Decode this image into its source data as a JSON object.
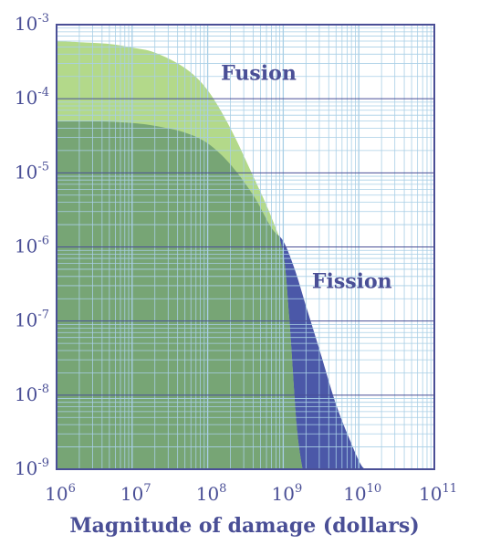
{
  "chart_data": {
    "type": "area",
    "xscale": "log",
    "yscale": "log",
    "xlim": [
      1000000,
      100000000000
    ],
    "ylim": [
      1e-09,
      0.001
    ],
    "grid": true,
    "xlabel": "Magnitude of damage (dollars)",
    "ylabel": "",
    "title": "",
    "x_ticks": [
      {
        "base": "10",
        "exp": "6"
      },
      {
        "base": "10",
        "exp": "7"
      },
      {
        "base": "10",
        "exp": "8"
      },
      {
        "base": "10",
        "exp": "9"
      },
      {
        "base": "10",
        "exp": "10"
      },
      {
        "base": "10",
        "exp": "11"
      }
    ],
    "y_ticks": [
      {
        "base": "10",
        "exp": "-3"
      },
      {
        "base": "10",
        "exp": "-4"
      },
      {
        "base": "10",
        "exp": "-5"
      },
      {
        "base": "10",
        "exp": "-6"
      },
      {
        "base": "10",
        "exp": "-7"
      },
      {
        "base": "10",
        "exp": "-8"
      },
      {
        "base": "10",
        "exp": "-9"
      }
    ],
    "series": [
      {
        "name": "Fission",
        "color": "#4b58a8",
        "x": [
          1000000,
          2000000,
          5000000,
          10000000,
          20000000,
          50000000,
          100000000,
          200000000,
          400000000,
          700000000,
          1000000000,
          1400000000,
          2000000000,
          3000000000,
          5000000000,
          8000000000,
          11000000000,
          13500000000
        ],
        "y": [
          5e-05,
          5e-05,
          4.9e-05,
          4.7e-05,
          4.3e-05,
          3.5e-05,
          2.5e-05,
          1.3e-05,
          5e-06,
          1.8e-06,
          1.2e-06,
          5.2e-07,
          1.6e-07,
          4.2e-08,
          7.5e-09,
          2.2e-09,
          1.1e-09,
          1e-09
        ]
      },
      {
        "name": "Fusion",
        "color": "#b3d98a",
        "x": [
          1000000,
          2000000,
          5000000,
          10000000,
          20000000,
          50000000,
          100000000,
          200000000,
          400000000,
          700000000,
          1000000000,
          1200000000,
          1500000000,
          1800000000
        ],
        "y": [
          0.0006,
          0.00058,
          0.00055,
          0.00049,
          0.00042,
          0.00026,
          0.00013,
          4e-05,
          9e-06,
          2.5e-06,
          8e-07,
          1.1e-07,
          4e-09,
          1e-09
        ]
      }
    ],
    "overlap_color": "#77a575"
  }
}
